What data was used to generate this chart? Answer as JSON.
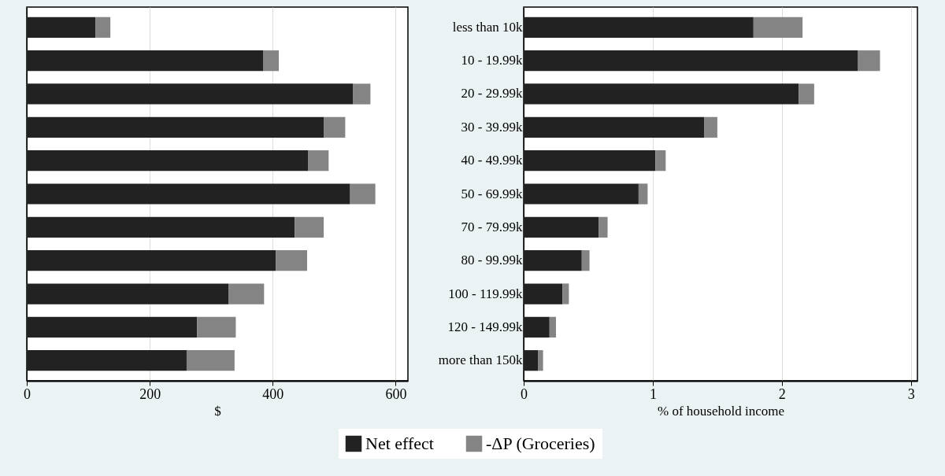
{
  "chart_data": [
    {
      "type": "bar",
      "orientation": "horizontal",
      "stacked": true,
      "categories": [
        null,
        null,
        null,
        null,
        null,
        null,
        null,
        null,
        null,
        null,
        null
      ],
      "xlabel": "$",
      "xlim": [
        0,
        620
      ],
      "xticks": [
        0,
        200,
        400,
        600
      ],
      "grid": "x",
      "legend": "bottom",
      "tick_labels": "x",
      "series": [
        {
          "name": "Net effect",
          "color": "#222222",
          "values": [
            112,
            385,
            531,
            483,
            458,
            526,
            436,
            405,
            328,
            277,
            260
          ]
        },
        {
          "name": "-ΔP (Groceries)",
          "color": "#848484",
          "values": [
            24,
            25,
            28,
            35,
            33,
            41,
            47,
            51,
            58,
            63,
            78
          ]
        }
      ]
    },
    {
      "type": "bar",
      "orientation": "horizontal",
      "stacked": true,
      "categories": [
        "less than 10k",
        "10 - 19.99k",
        "20 - 29.99k",
        "30 - 39.99k",
        "40 - 49.99k",
        "50 - 69.99k",
        "70 - 79.99k",
        "80 - 99.99k",
        "100 - 119.99k",
        "120 - 149.99k",
        "more than 150k"
      ],
      "xlabel": "% of household income",
      "xlim": [
        0,
        3.05
      ],
      "xticks": [
        0,
        1,
        2,
        3
      ],
      "grid": "x",
      "legend": "bottom",
      "series": [
        {
          "name": "Net effect",
          "color": "#222222",
          "values": [
            1.78,
            2.59,
            2.13,
            1.4,
            1.02,
            0.89,
            0.58,
            0.45,
            0.3,
            0.2,
            0.11
          ]
        },
        {
          "name": "-ΔP (Groceries)",
          "color": "#848484",
          "values": [
            0.38,
            0.17,
            0.12,
            0.1,
            0.08,
            0.07,
            0.07,
            0.06,
            0.05,
            0.05,
            0.04
          ]
        }
      ]
    }
  ]
}
